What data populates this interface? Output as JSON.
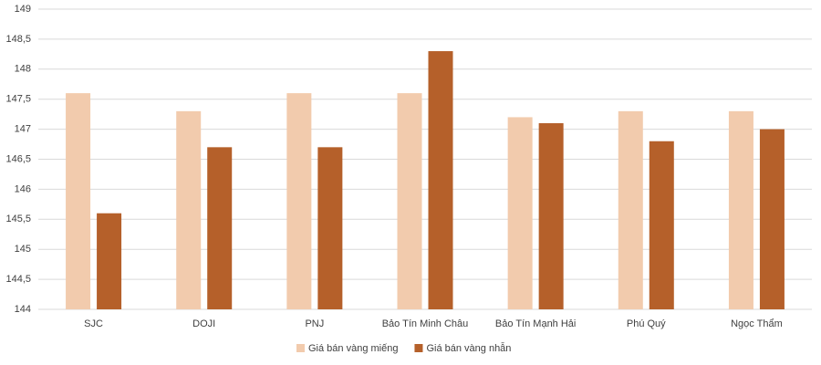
{
  "chart_data": {
    "type": "bar",
    "categories": [
      "SJC",
      "DOJI",
      "PNJ",
      "Bảo Tín Minh Châu",
      "Bảo Tín Mạnh Hải",
      "Phú Quý",
      "Ngọc Thẩm"
    ],
    "series": [
      {
        "name": "Giá bán vàng miếng",
        "color": "#f2cbad",
        "values": [
          147.6,
          147.3,
          147.6,
          147.6,
          147.2,
          147.3,
          147.3
        ]
      },
      {
        "name": "Giá bán vàng nhẫn",
        "color": "#b5602a",
        "values": [
          145.6,
          146.7,
          146.7,
          148.3,
          147.1,
          146.8,
          147.0
        ]
      }
    ],
    "ylim": [
      144,
      149
    ],
    "yticks": [
      144,
      {
        "value": 144.5,
        "label": "144,5"
      },
      145,
      {
        "value": 145.5,
        "label": "145,5"
      },
      146,
      {
        "value": 146.5,
        "label": "146,5"
      },
      147,
      {
        "value": 147.5,
        "label": "147,5"
      },
      148,
      {
        "value": 148.5,
        "label": "148,5"
      },
      149
    ],
    "grid": true,
    "legend": "bottom"
  }
}
